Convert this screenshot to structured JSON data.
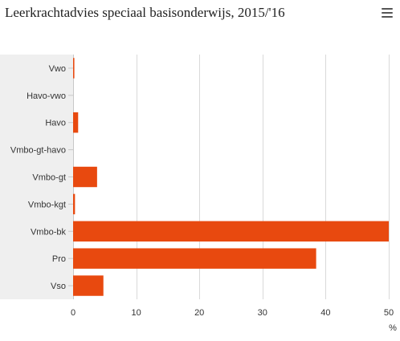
{
  "title": "Leerkrachtadvies speciaal basisonderwijs, 2015/'16",
  "menu_icon": "hamburger-menu-icon",
  "colors": {
    "bar": "#e8490f",
    "plot_band": "#efefef",
    "grid": "#d9d9d9"
  },
  "chart_data": {
    "type": "bar",
    "orientation": "horizontal",
    "title": "Leerkrachtadvies speciaal basisonderwijs, 2015/'16",
    "categories": [
      "Vwo",
      "Havo-vwo",
      "Havo",
      "Vmbo-gt-havo",
      "Vmbo-gt",
      "Vmbo-kgt",
      "Vmbo-bk",
      "Pro",
      "Vso"
    ],
    "values": [
      0.2,
      0,
      0.8,
      0,
      3.8,
      0.3,
      50.2,
      38.5,
      4.8
    ],
    "x_ticks": [
      0,
      10,
      20,
      30,
      40,
      50
    ],
    "xlim": [
      0,
      50
    ],
    "xlabel": "%",
    "ylabel": "",
    "grid": true,
    "legend": "none"
  }
}
